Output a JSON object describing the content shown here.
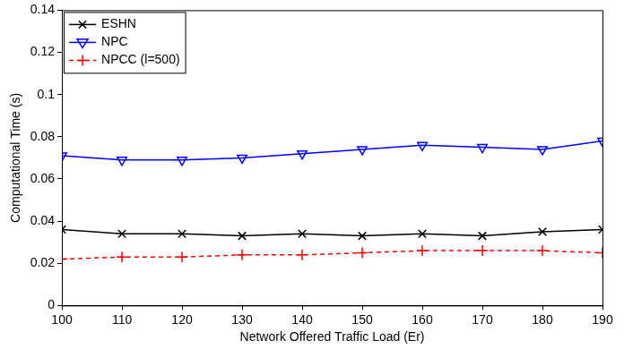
{
  "chart_data": {
    "type": "line",
    "x_label": "Network Offered Traffic Load (Er)",
    "y_label": "Computational Time (s)",
    "x": [
      100,
      110,
      120,
      130,
      140,
      150,
      160,
      170,
      180,
      190
    ],
    "xlim": [
      100,
      190
    ],
    "xticks": [
      100,
      110,
      120,
      130,
      140,
      150,
      160,
      170,
      180,
      190
    ],
    "ylim": [
      0,
      0.14
    ],
    "yticks": [
      0,
      0.02,
      0.04,
      0.06,
      0.08,
      0.1,
      0.12,
      0.14
    ],
    "grid": false,
    "legend": "upper left",
    "series": [
      {
        "name": "ESHN",
        "color": "#000000",
        "marker": "x",
        "line_style": "solid",
        "values": [
          0.036,
          0.034,
          0.034,
          0.033,
          0.034,
          0.033,
          0.034,
          0.033,
          0.035,
          0.036
        ]
      },
      {
        "name": "NPC",
        "color": "#0000ff",
        "marker": "triangle-down",
        "line_style": "solid",
        "values": [
          0.071,
          0.069,
          0.069,
          0.07,
          0.072,
          0.074,
          0.076,
          0.075,
          0.074,
          0.078
        ]
      },
      {
        "name": "NPCC (l=500)",
        "color": "#ff0000",
        "marker": "plus",
        "line_style": "dashed",
        "values": [
          0.022,
          0.023,
          0.023,
          0.024,
          0.024,
          0.025,
          0.026,
          0.026,
          0.026,
          0.025
        ]
      }
    ]
  }
}
